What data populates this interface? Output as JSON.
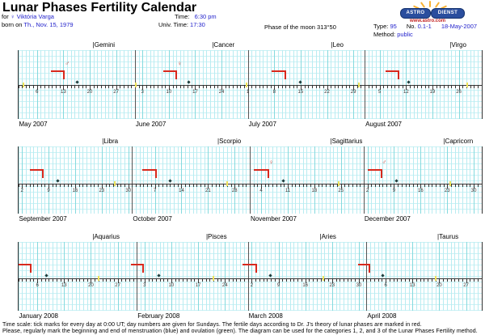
{
  "title": "Lunar Phases Fertility Calendar",
  "header": {
    "for_label": "for",
    "person": "♀ Viktória Varga",
    "born_label": "born on",
    "birth_date": "Th., Nov. 15, 1979",
    "time_label": "Time:",
    "time_value": "6:30 pm",
    "univ_time_label": "Univ. Time:",
    "univ_time_value": "17:30",
    "moon_phase": "Phase of the moon 313°50",
    "type_label": "Type:",
    "type_value": "95",
    "no_label": "No.",
    "no_value": "0.1-1",
    "date": "18-May-2007",
    "method_label": "Method:",
    "method_value": "public"
  },
  "logo": {
    "text1": "ASTRO",
    "text2": "DIENST",
    "url": "www.astro.com"
  },
  "colors": {
    "link_blue": "#2323cc",
    "fertile_red": "#d8291d",
    "grid_cyan": "#b9ecf1",
    "grid_cyan_strong": "#85dade",
    "axis": "#333333",
    "yellow_marker": "#efe35a",
    "logo_blue": "#2a4e9e",
    "logo_red": "#c22222"
  },
  "chart_data": {
    "type": "table",
    "title": "Lunar Phases Fertility Calendar",
    "description": "Three 4-month time strips (May 2007 - April 2008); one tick per day, numbers on Sundays; red corner marks = fertile days; zodiac cusp labels above; small dark dot and yellow tick markers per month",
    "rows": [
      [
        {
          "label": "May 2007",
          "days": 31,
          "sundays": [
            6,
            13,
            20,
            27
          ],
          "zodiac": "|Gemini",
          "zodiac_day": 21.0,
          "red": {
            "start": 9.7,
            "end": 13.2,
            "symbol": "♂"
          },
          "dot": 16.7,
          "yellow": [
            2.3
          ]
        },
        {
          "label": "June 2007",
          "days": 30,
          "sundays": [
            3,
            10,
            17,
            24
          ],
          "zodiac": "|Cancer",
          "zodiac_day": 21.7,
          "red": {
            "start": 8.5,
            "end": 12.0,
            "symbol": "♀"
          },
          "dot": 15.2,
          "yellow": [
            1.3,
            30.7
          ]
        },
        {
          "label": "July 2007",
          "days": 31,
          "sundays": [
            1,
            8,
            15,
            22,
            29
          ],
          "zodiac": "|Leo",
          "zodiac_day": 23.3,
          "red": {
            "start": 7.4,
            "end": 10.9
          },
          "dot": 14.9,
          "yellow": [
            30.4
          ]
        },
        {
          "label": "August 2007",
          "days": 31,
          "sundays": [
            5,
            12,
            19,
            26
          ],
          "zodiac": "|Virgo",
          "zodiac_day": 23.8,
          "red": {
            "start": 6.6,
            "end": 10.1
          },
          "dot": 12.7,
          "yellow": [
            28.3
          ]
        }
      ],
      [
        {
          "label": "September 2007",
          "days": 30,
          "sundays": [
            2,
            9,
            16,
            23,
            30
          ],
          "zodiac": "|Libra",
          "zodiac_day": 23.3,
          "red": {
            "start": 4.1,
            "end": 7.6
          },
          "dot": 11.4,
          "yellow": [
            26.5
          ]
        },
        {
          "label": "October 2007",
          "days": 31,
          "sundays": [
            7,
            14,
            21,
            28
          ],
          "zodiac": "|Scorpio",
          "zodiac_day": 23.7,
          "red": {
            "start": 3.6,
            "end": 7.2
          },
          "dot": 11.0,
          "yellow": [
            26.0
          ]
        },
        {
          "label": "November 2007",
          "days": 30,
          "sundays": [
            4,
            11,
            18,
            25
          ],
          "zodiac": "|Sagittarius",
          "zodiac_day": 22.4,
          "red": {
            "start": 2.0,
            "end": 5.8,
            "symbol": "♀"
          },
          "dot": 9.8,
          "yellow": [
            24.4
          ]
        },
        {
          "label": "December 2007",
          "days": 31,
          "sundays": [
            2,
            9,
            16,
            23,
            30
          ],
          "zodiac": "|Capricorn",
          "zodiac_day": 22.2,
          "red": {
            "start": 2.1,
            "end": 5.6,
            "symbol": "♂"
          },
          "dot": 9.6,
          "yellow": [
            23.7
          ]
        }
      ],
      [
        {
          "label": "January 2008",
          "days": 31,
          "sundays": [
            6,
            13,
            20,
            27
          ],
          "zodiac": "|Aquarius",
          "zodiac_day": 20.6,
          "red": {
            "start": 0.9,
            "end": 4.2
          },
          "dot": 8.4,
          "yellow": [
            22.0
          ]
        },
        {
          "label": "February 2008",
          "days": 29,
          "sundays": [
            3,
            10,
            17,
            24
          ],
          "zodiac": "|Pisces",
          "zodiac_day": 19.3,
          "red": {
            "start": -0.5,
            "end": 2.7
          },
          "dot": 6.7,
          "yellow": [
            20.9
          ]
        },
        {
          "label": "March 2008",
          "days": 31,
          "sundays": [
            2,
            9,
            16,
            23,
            30
          ],
          "zodiac": "|Aries",
          "zodiac_day": 20.0,
          "red": {
            "start": -0.4,
            "end": 3.2
          },
          "dot": 6.9,
          "yellow": [
            20.8
          ]
        },
        {
          "label": "April 2008",
          "days": 30,
          "sundays": [
            6,
            13,
            20,
            27
          ],
          "zodiac": "|Taurus",
          "zodiac_day": 19.7,
          "red": {
            "start": -1.3,
            "end": 1.8
          },
          "dot": 5.2,
          "yellow": [
            19.0
          ]
        }
      ]
    ]
  },
  "footer": {
    "line1": "Time scale: tick marks for every day at 0:00 UT; day numbers are given for Sundays. The fertile days according to Dr. J's theory of lunar phases are marked in red.",
    "line2": "Please, regularly mark the beginning and end of menstruation (blue) and ovulation (green). The diagram can be used for the categories 1, 2, and 3 of the Lunar Phases Fertility method."
  }
}
